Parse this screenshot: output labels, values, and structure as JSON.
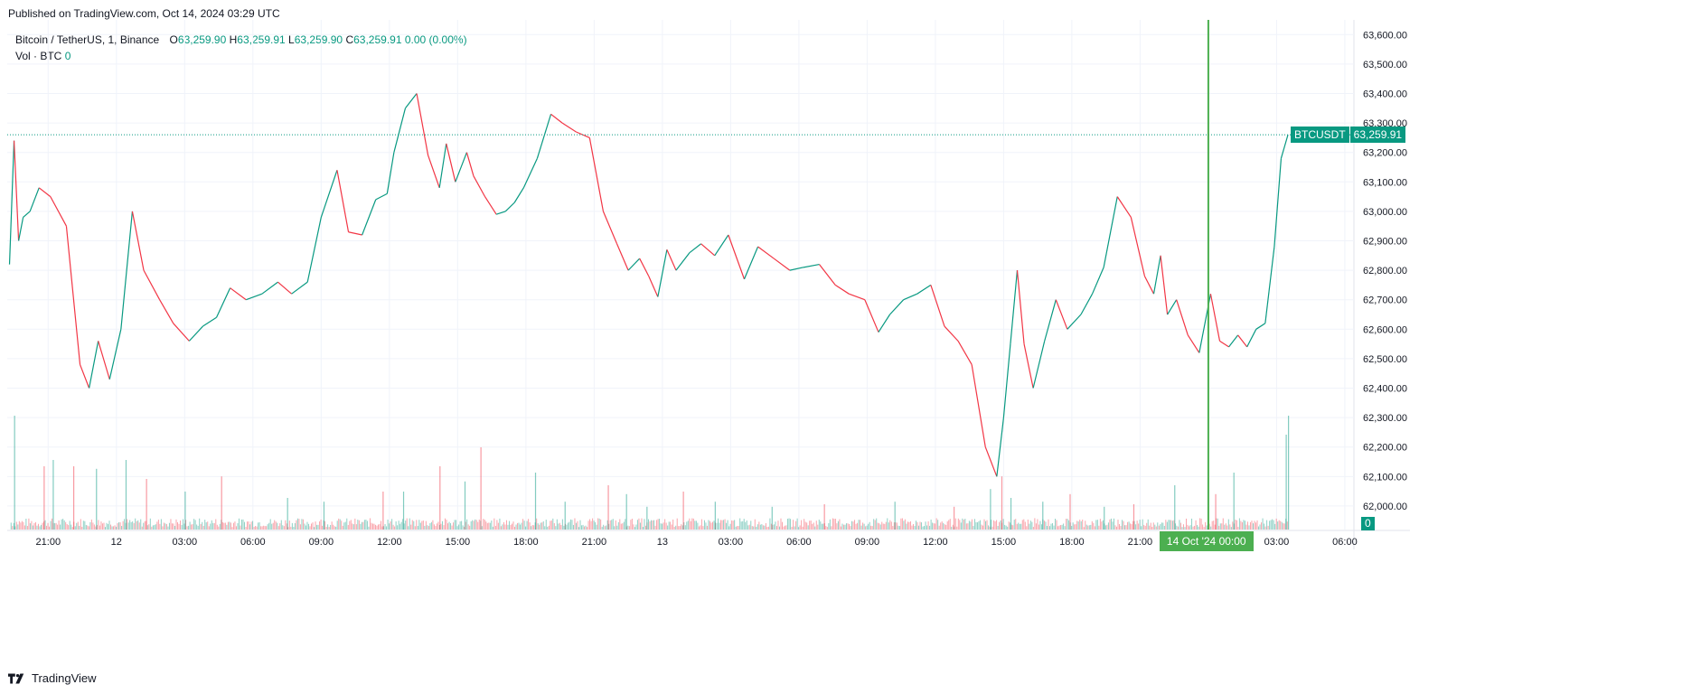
{
  "header": {
    "published": "Published on TradingView.com, Oct 14, 2024 03:29 UTC"
  },
  "legend": {
    "symbol": "Bitcoin / TetherUS, 1, Binance",
    "o_label": "O",
    "o_value": "63,259.90",
    "h_label": "H",
    "h_value": "63,259.91",
    "l_label": "L",
    "l_value": "63,259.90",
    "c_label": "C",
    "c_value": "63,259.91",
    "change": "0.00 (0.00%)",
    "vol_label": "Vol · BTC",
    "vol_value": "0"
  },
  "footer": {
    "brand": "TradingView"
  },
  "colors": {
    "up": "#089981",
    "down": "#f23645",
    "crosshair": "#4caf50",
    "grid": "#f0f3fa",
    "text": "#131722"
  },
  "chart_data": {
    "type": "line",
    "title": "Bitcoin / TetherUS, 1, Binance",
    "ylim": [
      61920,
      63650
    ],
    "y_ticks": [
      "63,600.00",
      "63,500.00",
      "63,400.00",
      "63,300.00",
      "63,200.00",
      "63,100.00",
      "63,000.00",
      "62,900.00",
      "62,800.00",
      "62,700.00",
      "62,600.00",
      "62,500.00",
      "62,400.00",
      "62,300.00",
      "62,200.00",
      "62,100.00",
      "62,000.00"
    ],
    "y_tick_values": [
      63600,
      63500,
      63400,
      63300,
      63200,
      63100,
      63000,
      62900,
      62800,
      62700,
      62600,
      62500,
      62400,
      62300,
      62200,
      62100,
      62000
    ],
    "x_ticks": [
      "21:00",
      "12",
      "03:00",
      "06:00",
      "09:00",
      "12:00",
      "15:00",
      "18:00",
      "21:00",
      "13",
      "03:00",
      "06:00",
      "09:00",
      "12:00",
      "15:00",
      "18:00",
      "21:00",
      "03:00",
      "06:00"
    ],
    "x_tick_hours": [
      -27,
      -24,
      -21,
      -18,
      -15,
      -12,
      -9,
      -6,
      -3,
      0,
      3,
      6,
      9,
      12,
      15,
      18,
      21,
      27,
      30
    ],
    "x_hours_range": [
      -28.8,
      30.4
    ],
    "x_unit": "hours from Oct 13 00:00 UTC",
    "series": [
      {
        "name": "BTCUSDT",
        "x": [
          -28.7,
          -28.5,
          -28.3,
          -28.1,
          -27.8,
          -27.4,
          -26.9,
          -26.2,
          -25.6,
          -25.2,
          -24.8,
          -24.3,
          -23.8,
          -23.3,
          -22.8,
          -22.1,
          -21.5,
          -20.8,
          -20.2,
          -19.6,
          -19.0,
          -18.3,
          -17.6,
          -16.9,
          -16.3,
          -15.6,
          -15.0,
          -14.3,
          -13.8,
          -13.2,
          -12.6,
          -12.1,
          -11.8,
          -11.3,
          -10.8,
          -10.3,
          -9.8,
          -9.5,
          -9.1,
          -8.6,
          -8.3,
          -7.8,
          -7.3,
          -6.9,
          -6.5,
          -6.1,
          -5.5,
          -4.9,
          -4.4,
          -3.8,
          -3.2,
          -2.6,
          -2.0,
          -1.5,
          -1.0,
          -0.6,
          -0.2,
          0.2,
          0.6,
          1.2,
          1.7,
          2.3,
          2.9,
          3.6,
          4.2,
          4.9,
          5.6,
          6.2,
          6.9,
          7.6,
          8.2,
          8.9,
          9.5,
          10.0,
          10.6,
          11.2,
          11.8,
          12.4,
          13.0,
          13.6,
          14.2,
          14.7,
          15.0,
          15.3,
          15.6,
          15.9,
          16.3,
          16.8,
          17.3,
          17.8,
          18.4,
          18.9,
          19.4,
          20.0,
          20.6,
          21.2,
          21.6,
          21.9,
          22.2,
          22.6,
          23.1,
          23.6,
          24.1,
          24.5,
          24.9,
          25.3,
          25.7,
          26.1,
          26.5,
          26.9,
          27.2,
          27.5
        ],
        "y": [
          62820,
          63240,
          62900,
          62980,
          63000,
          63080,
          63050,
          62950,
          62480,
          62400,
          62560,
          62430,
          62600,
          63000,
          62800,
          62700,
          62620,
          62560,
          62610,
          62640,
          62740,
          62700,
          62720,
          62760,
          62720,
          62760,
          62980,
          63140,
          62930,
          62920,
          63040,
          63060,
          63200,
          63350,
          63400,
          63190,
          63080,
          63230,
          63100,
          63200,
          63120,
          63050,
          62990,
          63000,
          63030,
          63080,
          63180,
          63330,
          63300,
          63270,
          63250,
          63000,
          62890,
          62800,
          62840,
          62780,
          62710,
          62870,
          62800,
          62860,
          62890,
          62850,
          62920,
          62770,
          62880,
          62840,
          62800,
          62810,
          62820,
          62750,
          62720,
          62700,
          62590,
          62650,
          62700,
          62720,
          62750,
          62610,
          62560,
          62480,
          62200,
          62100,
          62300,
          62550,
          62800,
          62550,
          62400,
          62560,
          62700,
          62600,
          62650,
          62720,
          62810,
          63050,
          62980,
          62780,
          62720,
          62850,
          62650,
          62700,
          62580,
          62520,
          62720,
          62560,
          62540,
          62580,
          62540,
          62600,
          62620,
          62880,
          63180,
          63260
        ]
      }
    ],
    "last_price_label": "BTCUSDT",
    "last_price": "63,259.91",
    "last_price_value": 63259.91,
    "crosshair_label": "14 Oct '24   00:00",
    "crosshair_hour": 24,
    "volume_label": "0",
    "volume_series": {
      "name": "Vol · BTC",
      "peaks_x": [
        -28.5,
        -27.2,
        -26.8,
        -25.9,
        -24.9,
        -23.6,
        -22.7,
        -21.0,
        -19.4,
        -16.5,
        -14.9,
        -12.3,
        -11.4,
        -9.8,
        -8.7,
        -8.0,
        -5.6,
        -4.3,
        -2.4,
        -1.6,
        -0.7,
        0.9,
        2.3,
        4.8,
        7.1,
        10.2,
        12.8,
        14.4,
        14.9,
        15.3,
        16.7,
        17.9,
        19.4,
        20.7,
        22.5,
        24.3,
        25.1,
        27.4,
        27.5
      ],
      "peaks_v": [
        0.9,
        0.5,
        0.55,
        0.5,
        0.48,
        0.55,
        0.4,
        0.3,
        0.42,
        0.25,
        0.22,
        0.3,
        0.3,
        0.5,
        0.38,
        0.65,
        0.45,
        0.22,
        0.35,
        0.28,
        0.18,
        0.3,
        0.22,
        0.18,
        0.2,
        0.22,
        0.18,
        0.32,
        0.42,
        0.25,
        0.22,
        0.28,
        0.18,
        0.2,
        0.35,
        0.28,
        0.45,
        0.75,
        0.9
      ],
      "peak_up": [
        true,
        false,
        true,
        false,
        true,
        true,
        false,
        true,
        false,
        true,
        true,
        false,
        true,
        false,
        true,
        false,
        true,
        true,
        false,
        true,
        true,
        false,
        true,
        true,
        false,
        true,
        false,
        true,
        false,
        true,
        true,
        false,
        true,
        false,
        true,
        false,
        true,
        true,
        true
      ]
    }
  }
}
